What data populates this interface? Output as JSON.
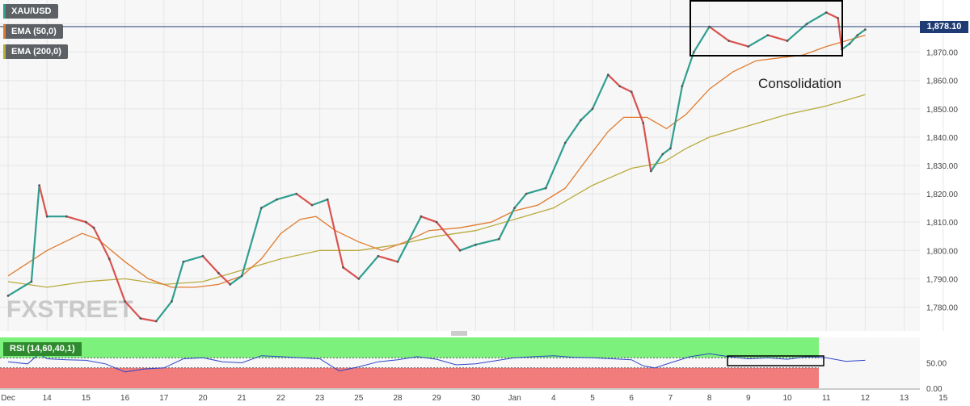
{
  "legend": {
    "series_main": {
      "label": "XAU/USD",
      "color": "#2e9e8f"
    },
    "ema50": {
      "label": "EMA (50,0)",
      "color": "#e07b2e"
    },
    "ema200": {
      "label": "EMA (200,0)",
      "color": "#b9ab3c"
    }
  },
  "rsi": {
    "label": "RSI (14,60,40,1)",
    "color": "#2f46c8",
    "overbought_color": "#7cf27c",
    "oversold_color": "#f27c7c"
  },
  "current_price": "1,878.10",
  "annotation": "Consolidation",
  "watermark": "FXSTREET",
  "colors": {
    "up": "#2e9e8f",
    "down": "#d9534f",
    "grid": "#e6e6e6",
    "bg": "#f7f7f7"
  },
  "chart_data": {
    "type": "line",
    "x_ticks": [
      "Dec",
      "14",
      "15",
      "16",
      "17",
      "20",
      "21",
      "22",
      "23",
      "25",
      "28",
      "29",
      "30",
      "Jan",
      "4",
      "5",
      "6",
      "7",
      "8",
      "9",
      "10",
      "11",
      "12",
      "13",
      "15"
    ],
    "y_ticks": [
      "1,780.00",
      "1,790.00",
      "1,800.00",
      "1,810.00",
      "1,820.00",
      "1,830.00",
      "1,840.00",
      "1,850.00",
      "1,860.00",
      "1,870.00",
      "1,880.00"
    ],
    "ylim": [
      1773,
      1887
    ],
    "rsi_ticks": [
      "0.00",
      "50.00"
    ],
    "rsi_ylim": [
      0,
      100
    ],
    "rsi_levels": [
      40,
      60
    ],
    "series": [
      {
        "name": "XAU/USD",
        "key": "price",
        "x": [
          0,
          0.6,
          0.8,
          1,
          1.5,
          2,
          2.2,
          2.6,
          3,
          3.4,
          3.8,
          4.2,
          4.5,
          5,
          5.4,
          5.7,
          6,
          6.5,
          6.9,
          7.4,
          7.8,
          8.2,
          8.6,
          9,
          9.5,
          10,
          10.6,
          11,
          11.6,
          12,
          12.6,
          13,
          13.3,
          13.8,
          14.3,
          14.7,
          15,
          15.4,
          15.7,
          16,
          16.3,
          16.5,
          16.8,
          17,
          17.3,
          17.6,
          18,
          18.5,
          19,
          19.5,
          20,
          20.5,
          21,
          21.3,
          21.4,
          21.6,
          21.8,
          22
        ],
        "y": [
          1784,
          1789,
          1823,
          1812,
          1812,
          1810,
          1808,
          1797,
          1782,
          1776,
          1775,
          1782,
          1796,
          1798,
          1792,
          1788,
          1791,
          1815,
          1818,
          1820,
          1816,
          1818,
          1794,
          1790,
          1798,
          1796,
          1812,
          1810,
          1800,
          1802,
          1804,
          1815,
          1820,
          1822,
          1838,
          1846,
          1850,
          1862,
          1858,
          1856,
          1845,
          1828,
          1834,
          1836,
          1858,
          1870,
          1879,
          1874,
          1872,
          1876,
          1874,
          1880,
          1884,
          1882,
          1871,
          1873,
          1876,
          1878
        ]
      },
      {
        "name": "EMA (50,0)",
        "key": "ema50",
        "x": [
          0,
          1,
          1.9,
          2.3,
          3,
          3.6,
          4.2,
          4.8,
          5.4,
          6,
          6.5,
          7,
          7.5,
          7.9,
          8.4,
          9,
          9.6,
          10.2,
          10.8,
          11.6,
          12.4,
          13,
          13.6,
          14.3,
          14.9,
          15.4,
          15.8,
          16.4,
          16.9,
          17.4,
          18,
          18.6,
          19.2,
          19.8,
          20.4,
          21,
          21.5,
          22
        ],
        "y": [
          1791,
          1800,
          1806,
          1804,
          1796,
          1790,
          1787,
          1787,
          1788,
          1791,
          1797,
          1806,
          1811,
          1812,
          1807,
          1803,
          1800,
          1803,
          1807,
          1808,
          1810,
          1814,
          1816,
          1822,
          1833,
          1842,
          1847,
          1847,
          1843,
          1848,
          1857,
          1863,
          1867,
          1868,
          1869,
          1872,
          1874,
          1876
        ]
      },
      {
        "name": "EMA (200,0)",
        "key": "ema200",
        "x": [
          0,
          1,
          2,
          3,
          4,
          5,
          6,
          7,
          8,
          9,
          10,
          11,
          12,
          13,
          14,
          15,
          16,
          16.8,
          17.4,
          18,
          19,
          20,
          21,
          22
        ],
        "y": [
          1789,
          1787,
          1789,
          1790,
          1788,
          1789,
          1793,
          1797,
          1800,
          1800,
          1802,
          1805,
          1807,
          1811,
          1815,
          1823,
          1829,
          1831,
          1836,
          1840,
          1844,
          1848,
          1851,
          1855
        ]
      },
      {
        "name": "RSI (14,60,40,1)",
        "key": "rsi",
        "x": [
          0,
          0.5,
          0.8,
          1,
          1.5,
          2,
          2.5,
          3,
          3.5,
          4,
          4.5,
          5,
          5.5,
          6,
          6.5,
          7,
          7.5,
          8,
          8.5,
          9,
          9.5,
          10,
          10.5,
          11,
          11.5,
          12,
          12.5,
          13,
          13.5,
          14,
          14.5,
          15,
          15.5,
          16,
          16.3,
          16.6,
          17,
          17.5,
          18,
          18.5,
          19,
          19.5,
          20,
          20.5,
          21,
          21.5,
          22
        ],
        "y": [
          52,
          48,
          68,
          58,
          56,
          55,
          48,
          32,
          38,
          40,
          58,
          60,
          52,
          50,
          64,
          62,
          60,
          58,
          34,
          42,
          52,
          56,
          62,
          57,
          46,
          48,
          54,
          60,
          62,
          64,
          61,
          60,
          58,
          56,
          44,
          40,
          50,
          62,
          68,
          62,
          58,
          60,
          57,
          62,
          60,
          53,
          55
        ]
      }
    ]
  }
}
